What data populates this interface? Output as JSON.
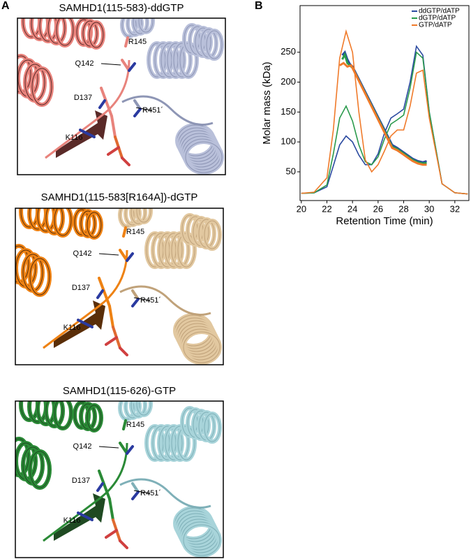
{
  "panel_a": {
    "label": "A",
    "panels": [
      {
        "title": "SAMHD1(115-583)-ddGTP",
        "labels": [
          "R145",
          "Q142",
          "D137",
          "R451´",
          "K116"
        ]
      },
      {
        "title": "SAMHD1(115-583[R164A])-dGTP",
        "labels": [
          "R145",
          "Q142",
          "D137",
          "R451´",
          "K116"
        ]
      },
      {
        "title": "SAMHD1(115-626)-GTP",
        "labels": [
          "R145",
          "Q142",
          "D137",
          "R451´",
          "K116"
        ]
      }
    ]
  },
  "chart_data": {
    "type": "line",
    "label": "B",
    "x_label": "Retention Time (min)",
    "y_label": "Molar mass (kDa)",
    "xlim": [
      19.9,
      33.1
    ],
    "xticks": [
      20,
      22,
      24,
      26,
      28,
      30,
      32
    ],
    "ylim": [
      2,
      328
    ],
    "yticks": [
      50,
      100,
      150,
      200,
      250
    ],
    "legend": "upper right",
    "x": [
      20,
      21,
      22,
      22.5,
      23,
      23.5,
      24,
      24.5,
      25,
      25.5,
      26,
      26.5,
      27,
      27.5,
      28,
      28.5,
      29,
      29.5,
      30,
      31,
      32,
      33
    ],
    "series": [
      {
        "name": "ddGTP/dATP",
        "color": "#2b4aa0",
        "values": [
          14,
          15,
          25,
          60,
          95,
          110,
          100,
          78,
          62,
          62,
          80,
          115,
          140,
          147,
          155,
          200,
          260,
          245,
          150,
          30,
          15,
          13
        ],
        "mass_x": [
          23.2,
          23.4,
          23.6,
          23.8,
          24.0,
          27.1,
          27.5,
          27.9,
          28.3,
          28.7,
          29.1,
          29.5,
          29.8
        ],
        "mass_values": [
          245,
          250,
          238,
          230,
          226,
          95,
          90,
          84,
          78,
          72,
          68,
          66,
          68
        ]
      },
      {
        "name": "dGTP/dATP",
        "color": "#2a9a4c",
        "values": [
          14,
          15,
          28,
          80,
          140,
          160,
          135,
          95,
          67,
          62,
          75,
          105,
          130,
          137,
          145,
          190,
          250,
          240,
          150,
          30,
          15,
          13
        ],
        "mass_x": [
          23.2,
          23.4,
          23.6,
          23.8,
          24.0,
          27.1,
          27.5,
          27.9,
          28.3,
          28.7,
          29.1,
          29.5,
          29.8
        ],
        "mass_values": [
          238,
          246,
          232,
          228,
          224,
          92,
          88,
          82,
          76,
          70,
          66,
          64,
          65
        ]
      },
      {
        "name": "GTP/dATP",
        "color": "#f07a2a",
        "values": [
          14,
          16,
          40,
          120,
          240,
          285,
          250,
          150,
          70,
          50,
          62,
          85,
          110,
          120,
          120,
          160,
          215,
          220,
          140,
          30,
          15,
          13
        ],
        "mass_x": [
          23.0,
          23.3,
          23.6,
          23.9,
          27.1,
          27.5,
          27.9,
          28.3,
          28.7,
          29.1,
          29.5,
          29.8
        ],
        "mass_values": [
          228,
          232,
          226,
          228,
          90,
          86,
          80,
          74,
          68,
          64,
          62,
          62
        ]
      }
    ]
  }
}
